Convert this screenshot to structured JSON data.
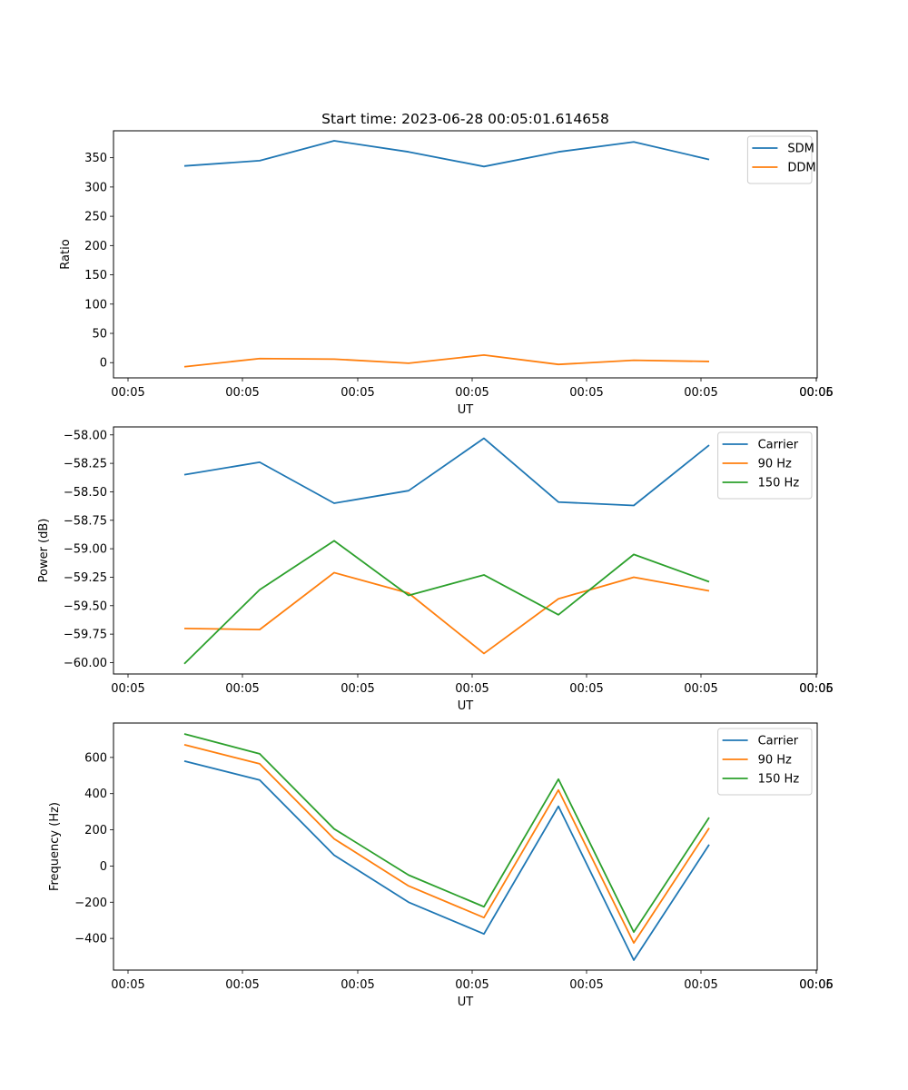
{
  "figure_title": "Start time: 2023-06-28 00:05:01.614658",
  "colors": {
    "blue": "#1f77b4",
    "orange": "#ff7f0e",
    "green": "#2ca02c"
  },
  "chart_data": [
    {
      "type": "line",
      "xlabel": "UT",
      "ylabel": "Ratio",
      "x_tick_labels": [
        "00:05",
        "00:05",
        "00:05",
        "00:05",
        "00:05",
        "00:05",
        "00:05",
        "00:06"
      ],
      "y_ticks": [
        0,
        50,
        100,
        150,
        200,
        250,
        300,
        350
      ],
      "y_tick_labels": [
        "0",
        "50",
        "100",
        "150",
        "200",
        "250",
        "300",
        "350"
      ],
      "ylim": [
        -26,
        396
      ],
      "legend_position": "upper right",
      "series": [
        {
          "name": "SDM",
          "color": "#1f77b4",
          "values": [
            336,
            345,
            379,
            360,
            335,
            360,
            377,
            347
          ]
        },
        {
          "name": "DDM",
          "color": "#ff7f0e",
          "values": [
            -7,
            7,
            6,
            -1,
            13,
            -3,
            4,
            2
          ]
        }
      ]
    },
    {
      "type": "line",
      "xlabel": "UT",
      "ylabel": "Power (dB)",
      "x_tick_labels": [
        "00:05",
        "00:05",
        "00:05",
        "00:05",
        "00:05",
        "00:05",
        "00:05",
        "00:06"
      ],
      "y_ticks": [
        -60.0,
        -59.75,
        -59.5,
        -59.25,
        -59.0,
        -58.75,
        -58.5,
        -58.25,
        -58.0
      ],
      "y_tick_labels": [
        "−60.00",
        "−59.75",
        "−59.50",
        "−59.25",
        "−59.00",
        "−58.75",
        "−58.50",
        "−58.25",
        "−58.00"
      ],
      "ylim": [
        -60.1,
        -57.93
      ],
      "legend_position": "upper right",
      "series": [
        {
          "name": "Carrier",
          "color": "#1f77b4",
          "values": [
            -58.35,
            -58.24,
            -58.6,
            -58.49,
            -58.03,
            -58.59,
            -58.62,
            -58.09
          ]
        },
        {
          "name": "90 Hz",
          "color": "#ff7f0e",
          "values": [
            -59.7,
            -59.71,
            -59.21,
            -59.39,
            -59.92,
            -59.44,
            -59.25,
            -59.37
          ]
        },
        {
          "name": "150 Hz",
          "color": "#2ca02c",
          "values": [
            -60.01,
            -59.36,
            -58.93,
            -59.41,
            -59.23,
            -59.58,
            -59.05,
            -59.29
          ]
        }
      ]
    },
    {
      "type": "line",
      "xlabel": "UT",
      "ylabel": "Frequency (Hz)",
      "x_tick_labels": [
        "00:05",
        "00:05",
        "00:05",
        "00:05",
        "00:05",
        "00:05",
        "00:05",
        "00:06"
      ],
      "y_ticks": [
        -400,
        -200,
        0,
        200,
        400,
        600
      ],
      "y_tick_labels": [
        "−400",
        "−200",
        "0",
        "200",
        "400",
        "600"
      ],
      "ylim": [
        -575,
        790
      ],
      "legend_position": "upper right",
      "series": [
        {
          "name": "Carrier",
          "color": "#1f77b4",
          "values": [
            580,
            475,
            60,
            -200,
            -375,
            330,
            -520,
            118
          ]
        },
        {
          "name": "90 Hz",
          "color": "#ff7f0e",
          "values": [
            670,
            565,
            150,
            -110,
            -285,
            420,
            -425,
            210
          ]
        },
        {
          "name": "150 Hz",
          "color": "#2ca02c",
          "values": [
            730,
            620,
            205,
            -50,
            -225,
            480,
            -365,
            268
          ]
        }
      ]
    }
  ]
}
